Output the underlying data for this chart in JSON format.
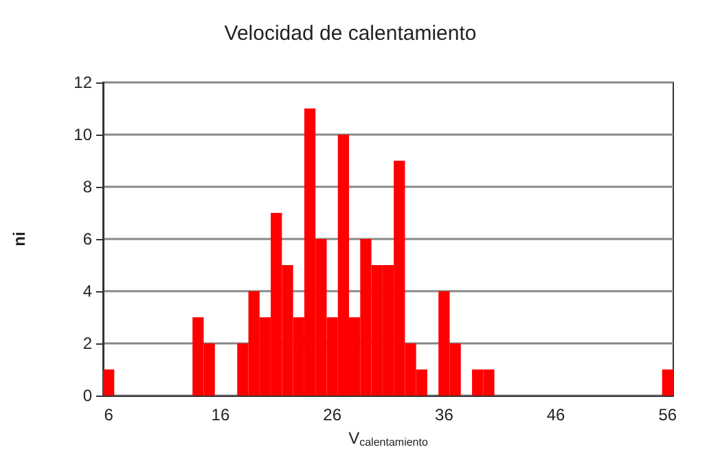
{
  "chart_data": {
    "type": "bar",
    "title": "Velocidad de calentamiento",
    "xlabel": "V$_{calentamiento}$",
    "ylabel": "ni",
    "categories": [
      "6",
      null,
      null,
      null,
      null,
      null,
      null,
      null,
      null,
      null,
      "16",
      null,
      null,
      null,
      null,
      null,
      null,
      null,
      null,
      null,
      "26",
      null,
      null,
      null,
      null,
      null,
      null,
      null,
      null,
      null,
      "36",
      null,
      null,
      null,
      null,
      null,
      null,
      null,
      null,
      null,
      "46",
      null,
      null,
      null,
      null,
      null,
      null,
      null,
      null,
      null,
      "56"
    ],
    "values": [
      1,
      0,
      0,
      0,
      0,
      0,
      0,
      0,
      3,
      2,
      0,
      0,
      2,
      4,
      3,
      7,
      5,
      3,
      11,
      6,
      3,
      10,
      3,
      6,
      5,
      5,
      9,
      2,
      1,
      0,
      4,
      2,
      0,
      1,
      1,
      0,
      0,
      0,
      0,
      0,
      0,
      0,
      0,
      0,
      0,
      0,
      0,
      0,
      0,
      0,
      1
    ],
    "color": "#ff0000",
    "ylim": [
      0,
      12
    ],
    "yticks": [
      0,
      2,
      4,
      6,
      8,
      10,
      12
    ],
    "grid": "y"
  }
}
